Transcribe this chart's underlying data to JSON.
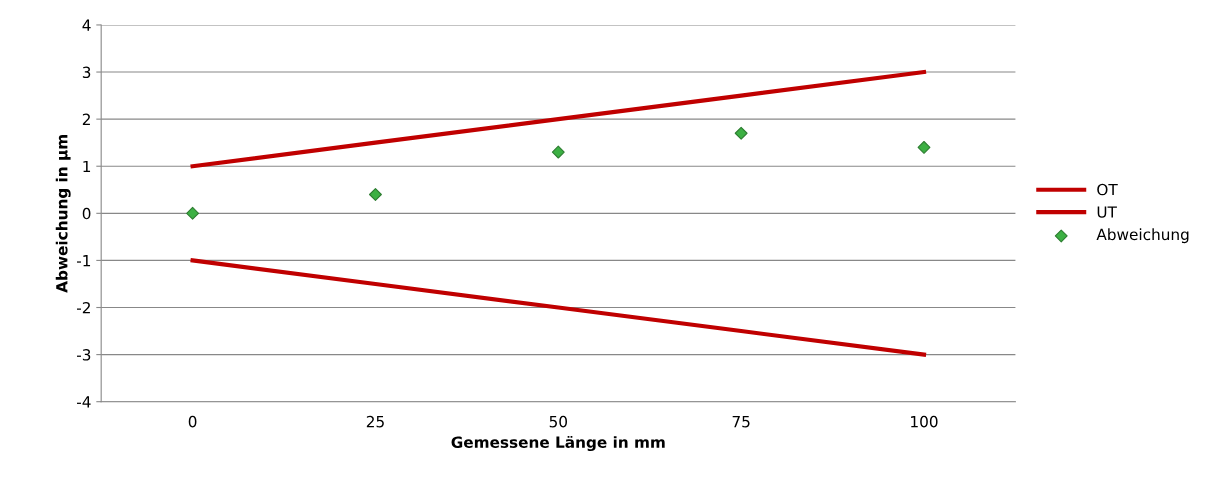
{
  "chart_data": {
    "type": "line",
    "xlabel": "Gemessene Länge in mm",
    "ylabel": "Abweichung in µm",
    "categories": [
      "0",
      "25",
      "50",
      "75",
      "100"
    ],
    "series": [
      {
        "name": "OT",
        "color": "#c00000",
        "values": [
          1,
          1.5,
          2,
          2.5,
          3
        ]
      },
      {
        "name": "UT",
        "color": "#c00000",
        "values": [
          -1,
          -1.5,
          -2,
          -2.5,
          -3
        ]
      },
      {
        "name": "Abweichung",
        "type": "scatter",
        "marker": "diamond",
        "color": "#3cb043",
        "values": [
          0,
          0.4,
          1.3,
          1.7,
          1.4
        ]
      }
    ],
    "ylim": [
      -4,
      4
    ],
    "yticks": [
      -4,
      -3,
      -2,
      -1,
      0,
      1,
      2,
      3,
      4
    ],
    "grid": "y",
    "legend": "right",
    "marker": "none",
    "line_style": "solid"
  }
}
